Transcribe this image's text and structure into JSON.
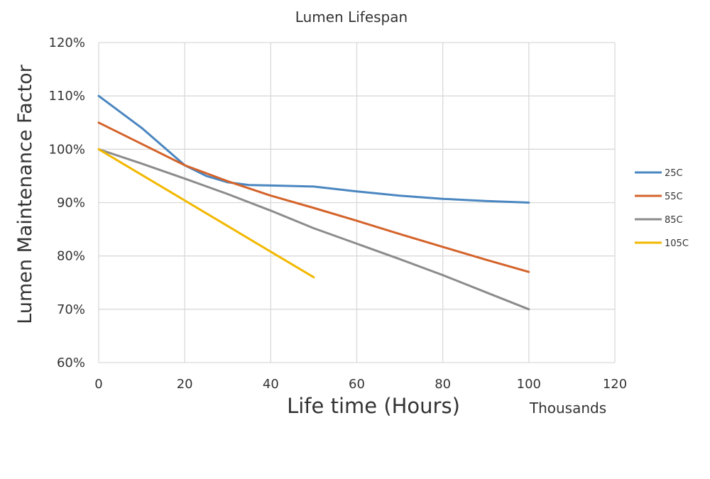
{
  "chart_data": {
    "type": "line",
    "title": "Lumen Lifespan",
    "xlabel": "Life time (Hours)",
    "xunit": "Thousands",
    "ylabel": "Lumen Maintenance Factor",
    "xlim": [
      0,
      120
    ],
    "ylim": [
      60,
      120
    ],
    "xticks": [
      "0",
      "20",
      "40",
      "60",
      "80",
      "100",
      "120"
    ],
    "yticks": [
      "60%",
      "70%",
      "80%",
      "90%",
      "100%",
      "110%",
      "120%"
    ],
    "grid": true,
    "legend": "right",
    "series": [
      {
        "name": "25C",
        "color": "#4a86c0",
        "x": [
          0,
          10,
          20,
          25,
          30,
          35,
          40,
          50,
          60,
          70,
          80,
          90,
          100
        ],
        "y": [
          110,
          104,
          97,
          95,
          93.8,
          93.3,
          93.2,
          93.0,
          92.1,
          91.3,
          90.7,
          90.3,
          90.0
        ]
      },
      {
        "name": "55C",
        "color": "#d4632a",
        "x": [
          0,
          10,
          20,
          30,
          40,
          50,
          60,
          70,
          80,
          90,
          100
        ],
        "y": [
          105,
          101,
          97,
          94,
          91.3,
          89,
          86.6,
          84.1,
          81.7,
          79.3,
          77
        ]
      },
      {
        "name": "85C",
        "color": "#8c8c8c",
        "x": [
          0,
          10,
          20,
          30,
          40,
          50,
          60,
          70,
          80,
          90,
          100
        ],
        "y": [
          100,
          97.3,
          94.5,
          91.6,
          88.5,
          85.2,
          82.3,
          79.4,
          76.4,
          73.2,
          70
        ]
      },
      {
        "name": "105C",
        "color": "#f2b800",
        "x": [
          0,
          10,
          20,
          30,
          40,
          50
        ],
        "y": [
          100,
          95.2,
          90.4,
          85.6,
          80.8,
          76
        ]
      }
    ]
  }
}
